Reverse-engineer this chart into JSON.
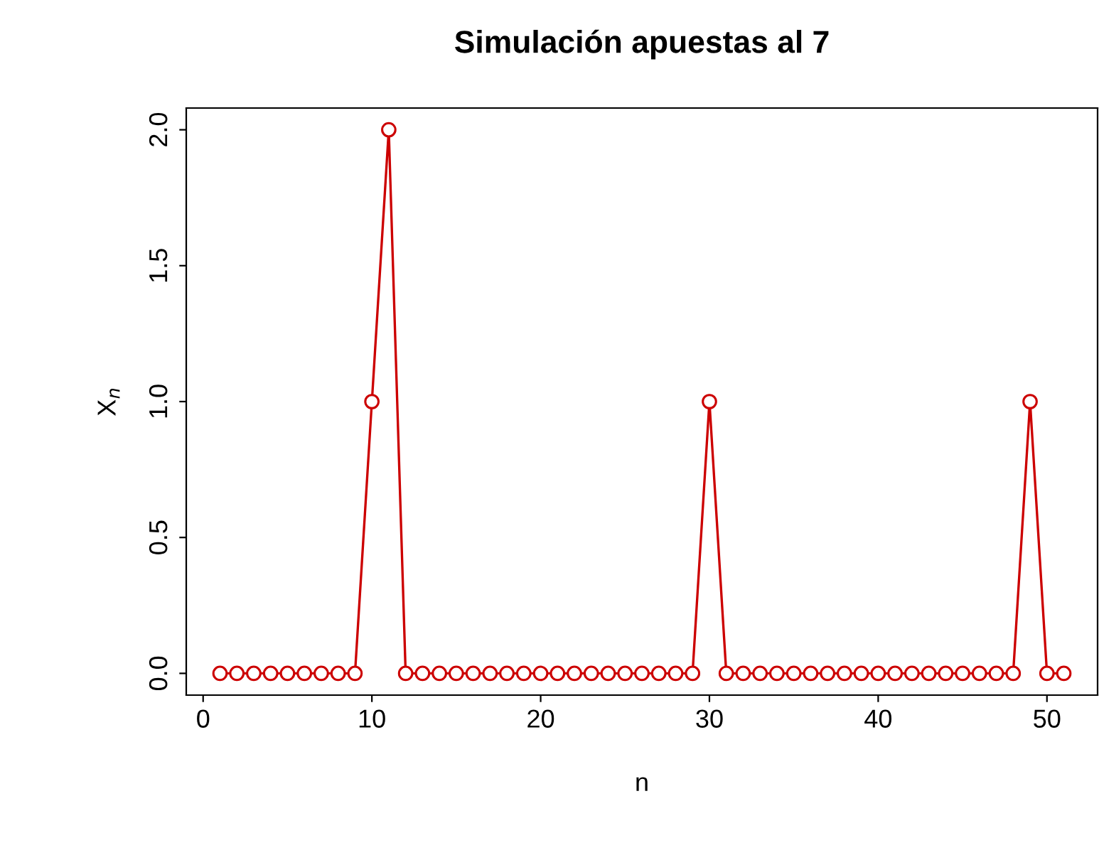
{
  "chart_data": {
    "type": "line",
    "title": "Simulación apuestas al 7",
    "xlabel": "n",
    "ylabel": "X$_{n}$",
    "x": [
      1,
      2,
      3,
      4,
      5,
      6,
      7,
      8,
      9,
      10,
      11,
      12,
      13,
      14,
      15,
      16,
      17,
      18,
      19,
      20,
      21,
      22,
      23,
      24,
      25,
      26,
      27,
      28,
      29,
      30,
      31,
      32,
      33,
      34,
      35,
      36,
      37,
      38,
      39,
      40,
      41,
      42,
      43,
      44,
      45,
      46,
      47,
      48,
      49,
      50,
      51
    ],
    "series": [
      {
        "color": "#cc0000",
        "values": [
          0,
          0,
          0,
          0,
          0,
          0,
          0,
          0,
          0,
          1,
          2,
          0,
          0,
          0,
          0,
          0,
          0,
          0,
          0,
          0,
          0,
          0,
          0,
          0,
          0,
          0,
          0,
          0,
          0,
          1,
          0,
          0,
          0,
          0,
          0,
          0,
          0,
          0,
          0,
          0,
          0,
          0,
          0,
          0,
          0,
          0,
          0,
          0,
          1,
          0,
          0
        ]
      }
    ],
    "xlim": [
      -1,
      53
    ],
    "ylim": [
      -0.08,
      2.08
    ],
    "xticks": [
      0,
      10,
      20,
      30,
      40,
      50
    ],
    "yticks": [
      {
        "value": 0,
        "label": "0.0"
      },
      {
        "value": 0.5,
        "label": "0.5"
      },
      {
        "value": 1,
        "label": "1.0"
      },
      {
        "value": 1.5,
        "label": "1.5"
      },
      {
        "value": 2,
        "label": "2.0"
      }
    ],
    "marker": "circle",
    "line_style": "solid",
    "grid": false,
    "legend": false
  }
}
